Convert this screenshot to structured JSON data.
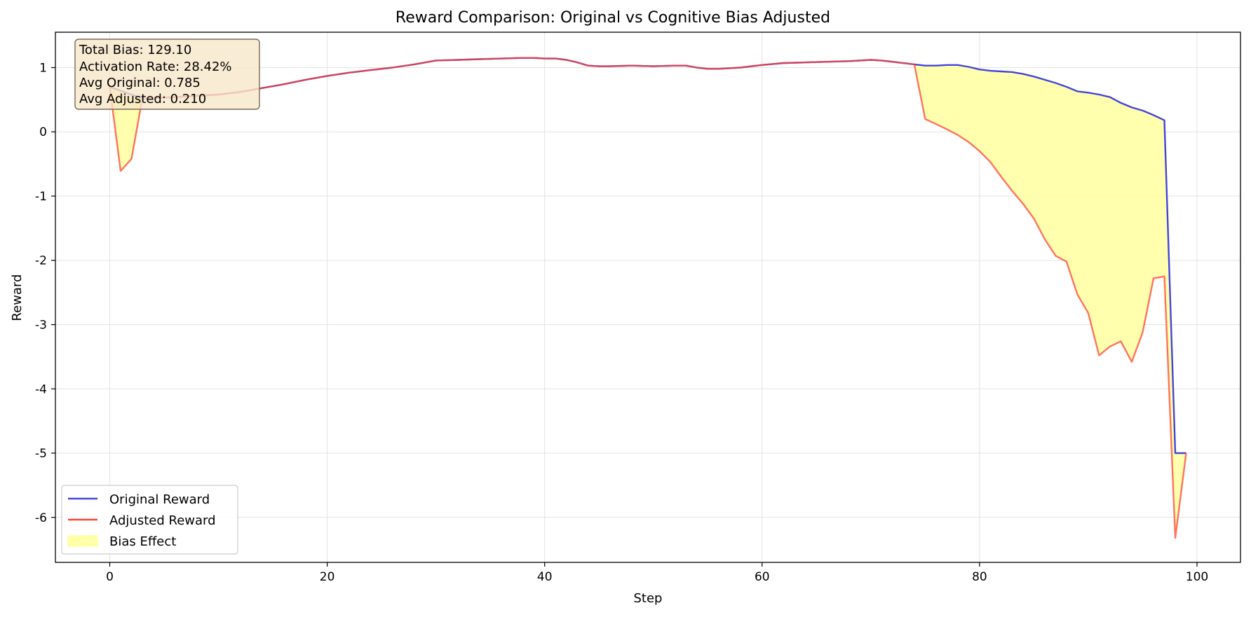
{
  "chart_data": {
    "type": "line",
    "title": "Reward Comparison: Original vs Cognitive Bias Adjusted",
    "xlabel": "Step",
    "ylabel": "Reward",
    "xlim": [
      -5,
      104
    ],
    "ylim": [
      -6.7,
      1.55
    ],
    "xticks": [
      0,
      20,
      40,
      60,
      80,
      100
    ],
    "yticks": [
      1,
      0,
      -1,
      -2,
      -3,
      -4,
      -5,
      -6
    ],
    "grid": true,
    "legend_position": "lower-left",
    "colors": {
      "original": "#4444dd",
      "adjusted": "#ff4433",
      "bias": "#ffffaa"
    },
    "legend": [
      "Original Reward",
      "Adjusted Reward",
      "Bias Effect"
    ],
    "stats_box": {
      "position": "top-left",
      "lines": [
        "Total Bias: 129.10",
        "Activation Rate: 28.42%",
        "Avg Original: 0.785",
        "Avg Adjusted: 0.210"
      ]
    },
    "series": [
      {
        "name": "Original Reward",
        "x": [
          0,
          3,
          6,
          8,
          10,
          12,
          14,
          16,
          18,
          20,
          22,
          24,
          26,
          28,
          30,
          32,
          34,
          36,
          38,
          39,
          40,
          41,
          42,
          43,
          44,
          45,
          46,
          48,
          50,
          52,
          53,
          54,
          55,
          56,
          58,
          60,
          62,
          64,
          66,
          68,
          70,
          71,
          72,
          74,
          75,
          76,
          77,
          78,
          79,
          80,
          81,
          82,
          83,
          84,
          85,
          86,
          87,
          88,
          89,
          90,
          91,
          92,
          93,
          94,
          95,
          96,
          97,
          98,
          99
        ],
        "y": [
          0.7,
          0.52,
          0.54,
          0.56,
          0.58,
          0.62,
          0.68,
          0.74,
          0.81,
          0.87,
          0.92,
          0.96,
          1.0,
          1.05,
          1.11,
          1.12,
          1.13,
          1.14,
          1.15,
          1.15,
          1.14,
          1.14,
          1.12,
          1.08,
          1.03,
          1.02,
          1.02,
          1.03,
          1.02,
          1.03,
          1.03,
          1.0,
          0.98,
          0.98,
          1.0,
          1.04,
          1.07,
          1.08,
          1.09,
          1.1,
          1.12,
          1.11,
          1.09,
          1.05,
          1.03,
          1.03,
          1.04,
          1.04,
          1.01,
          0.97,
          0.95,
          0.94,
          0.93,
          0.9,
          0.86,
          0.81,
          0.76,
          0.7,
          0.63,
          0.61,
          0.58,
          0.54,
          0.45,
          0.38,
          0.33,
          0.26,
          0.18,
          -5.0,
          -5.0
        ]
      },
      {
        "name": "Adjusted Reward",
        "x": [
          0,
          1,
          2,
          3,
          6,
          8,
          10,
          12,
          14,
          16,
          18,
          20,
          22,
          24,
          26,
          28,
          30,
          32,
          34,
          36,
          38,
          39,
          40,
          41,
          42,
          43,
          44,
          45,
          46,
          48,
          50,
          52,
          53,
          54,
          55,
          56,
          58,
          60,
          62,
          64,
          66,
          68,
          70,
          71,
          72,
          74,
          75,
          76,
          77,
          78,
          79,
          80,
          81,
          82,
          83,
          84,
          85,
          86,
          87,
          88,
          89,
          90,
          91,
          92,
          93,
          94,
          95,
          96,
          97,
          98,
          99
        ],
        "y": [
          0.7,
          -0.61,
          -0.42,
          0.52,
          0.54,
          0.56,
          0.58,
          0.62,
          0.68,
          0.74,
          0.81,
          0.87,
          0.92,
          0.96,
          1.0,
          1.05,
          1.11,
          1.12,
          1.13,
          1.14,
          1.15,
          1.15,
          1.14,
          1.14,
          1.12,
          1.08,
          1.03,
          1.02,
          1.02,
          1.03,
          1.02,
          1.03,
          1.03,
          1.0,
          0.98,
          0.98,
          1.0,
          1.04,
          1.07,
          1.08,
          1.09,
          1.1,
          1.12,
          1.11,
          1.09,
          1.05,
          0.2,
          0.12,
          0.04,
          -0.05,
          -0.16,
          -0.3,
          -0.47,
          -0.7,
          -0.92,
          -1.12,
          -1.35,
          -1.67,
          -1.93,
          -2.02,
          -2.53,
          -2.82,
          -3.48,
          -3.34,
          -3.26,
          -3.58,
          -3.12,
          -2.28,
          -2.25,
          -6.32,
          -5.0
        ]
      }
    ]
  }
}
